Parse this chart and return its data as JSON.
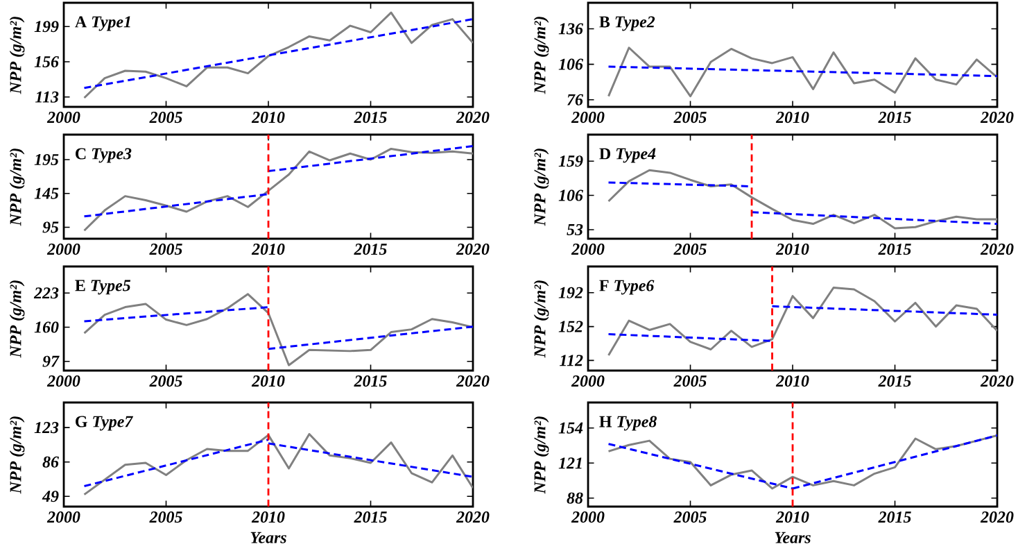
{
  "chart_data": [
    {
      "type": "line",
      "title": "A *Type1*",
      "ylabel": "NPP (g/m²)",
      "xlim": [
        2000,
        2020
      ],
      "xticks": [
        2000,
        2005,
        2010,
        2015,
        2020
      ],
      "ylim": [
        101,
        228
      ],
      "yticks": [
        113,
        156,
        199
      ],
      "x": [
        2001,
        2002,
        2003,
        2004,
        2005,
        2006,
        2007,
        2008,
        2009,
        2010,
        2011,
        2012,
        2013,
        2014,
        2015,
        2016,
        2017,
        2018,
        2019,
        2020
      ],
      "series": [
        {
          "color": "#808080",
          "values": [
            112,
            136,
            145,
            144,
            136,
            126,
            149,
            149,
            142,
            163,
            174,
            187,
            182,
            200,
            192,
            216,
            179,
            201,
            208,
            179
          ]
        },
        {
          "type": "line",
          "x": [
            2001,
            2020
          ],
          "values": [
            124,
            208
          ],
          "color": "#0000ff",
          "line_style": "dashed"
        }
      ]
    },
    {
      "type": "line",
      "title": "B *Type2*",
      "ylabel": "NPP (g/m²)",
      "xlim": [
        2000,
        2020
      ],
      "xticks": [
        2000,
        2005,
        2010,
        2015,
        2020
      ],
      "ylim": [
        70,
        158
      ],
      "yticks": [
        76,
        106,
        136
      ],
      "x": [
        2001,
        2002,
        2003,
        2004,
        2005,
        2006,
        2007,
        2008,
        2009,
        2010,
        2011,
        2012,
        2013,
        2014,
        2015,
        2016,
        2017,
        2018,
        2019,
        2020
      ],
      "series": [
        {
          "color": "#808080",
          "values": [
            79,
            120,
            104,
            104,
            79,
            108,
            119,
            111,
            107,
            112,
            85,
            116,
            90,
            93,
            82,
            111,
            93,
            89,
            110,
            95
          ]
        },
        {
          "type": "line",
          "x": [
            2001,
            2020
          ],
          "values": [
            104,
            96
          ],
          "color": "#0000ff",
          "line_style": "dashed"
        }
      ]
    },
    {
      "type": "line",
      "title": "C *Type3*",
      "ylabel": "NPP (g/m²)",
      "xlim": [
        2000,
        2020
      ],
      "xticks": [
        2000,
        2005,
        2010,
        2015,
        2020
      ],
      "ylim": [
        78,
        232
      ],
      "yticks": [
        95,
        145,
        195
      ],
      "x": [
        2001,
        2002,
        2003,
        2004,
        2005,
        2006,
        2007,
        2008,
        2009,
        2010,
        2011,
        2012,
        2013,
        2014,
        2015,
        2016,
        2017,
        2018,
        2019,
        2020
      ],
      "series": [
        {
          "color": "#808080",
          "values": [
            90,
            120,
            141,
            135,
            127,
            118,
            133,
            141,
            125,
            149,
            173,
            207,
            194,
            204,
            195,
            211,
            206,
            205,
            207,
            204
          ]
        },
        {
          "type": "line",
          "x": [
            2001,
            2010
          ],
          "values": [
            111,
            144
          ],
          "color": "#0000ff",
          "line_style": "dashed"
        },
        {
          "type": "line",
          "x": [
            2010,
            2020
          ],
          "values": [
            178,
            215
          ],
          "color": "#0000ff",
          "line_style": "dashed"
        }
      ],
      "ref_lines": [
        {
          "axis": "x",
          "value": 2010,
          "color": "#ff0000",
          "line_style": "dashed"
        }
      ]
    },
    {
      "type": "line",
      "title": "D *Type4*",
      "ylabel": "NPP (g/m²)",
      "xlim": [
        2000,
        2020
      ],
      "xticks": [
        2000,
        2005,
        2010,
        2015,
        2020
      ],
      "ylim": [
        39,
        200
      ],
      "yticks": [
        53,
        106,
        159
      ],
      "x": [
        2001,
        2002,
        2003,
        2004,
        2005,
        2006,
        2007,
        2008,
        2009,
        2010,
        2011,
        2012,
        2013,
        2014,
        2015,
        2016,
        2017,
        2018,
        2019,
        2020
      ],
      "series": [
        {
          "color": "#808080",
          "values": [
            97,
            128,
            145,
            141,
            130,
            120,
            123,
            103,
            85,
            68,
            62,
            76,
            63,
            76,
            55,
            57,
            66,
            73,
            69,
            69
          ]
        },
        {
          "type": "line",
          "x": [
            2001,
            2008
          ],
          "values": [
            126,
            120
          ],
          "color": "#0000ff",
          "line_style": "dashed"
        },
        {
          "type": "line",
          "x": [
            2008,
            2020
          ],
          "values": [
            80,
            62
          ],
          "color": "#0000ff",
          "line_style": "dashed"
        }
      ],
      "ref_lines": [
        {
          "axis": "x",
          "value": 2008,
          "color": "#ff0000",
          "line_style": "dashed"
        }
      ]
    },
    {
      "type": "line",
      "title": "E *Type5*",
      "ylabel": "NPP (g/m²)",
      "xlim": [
        2000,
        2020
      ],
      "xticks": [
        2000,
        2005,
        2010,
        2015,
        2020
      ],
      "ylim": [
        80,
        272
      ],
      "yticks": [
        97,
        160,
        223
      ],
      "x": [
        2001,
        2002,
        2003,
        2004,
        2005,
        2006,
        2007,
        2008,
        2009,
        2010,
        2011,
        2012,
        2013,
        2014,
        2015,
        2016,
        2017,
        2018,
        2019,
        2020
      ],
      "series": [
        {
          "color": "#808080",
          "values": [
            149,
            183,
            197,
            203,
            174,
            164,
            175,
            195,
            221,
            186,
            90,
            118,
            117,
            116,
            118,
            151,
            156,
            175,
            169,
            160
          ]
        },
        {
          "type": "line",
          "x": [
            2001,
            2010
          ],
          "values": [
            171,
            197
          ],
          "color": "#0000ff",
          "line_style": "dashed"
        },
        {
          "type": "line",
          "x": [
            2010,
            2020
          ],
          "values": [
            120,
            161
          ],
          "color": "#0000ff",
          "line_style": "dashed"
        }
      ],
      "ref_lines": [
        {
          "axis": "x",
          "value": 2010,
          "color": "#ff0000",
          "line_style": "dashed"
        }
      ]
    },
    {
      "type": "line",
      "title": "F *Type6*",
      "ylabel": "NPP (g/m²)",
      "xlim": [
        2000,
        2020
      ],
      "xticks": [
        2000,
        2005,
        2010,
        2015,
        2020
      ],
      "ylim": [
        100,
        223
      ],
      "yticks": [
        112,
        152,
        192
      ],
      "x": [
        2001,
        2002,
        2003,
        2004,
        2005,
        2006,
        2007,
        2008,
        2009,
        2010,
        2011,
        2012,
        2013,
        2014,
        2015,
        2016,
        2017,
        2018,
        2019,
        2020
      ],
      "series": [
        {
          "color": "#808080",
          "values": [
            118,
            159,
            148,
            155,
            134,
            125,
            147,
            128,
            137,
            188,
            162,
            198,
            196,
            182,
            158,
            180,
            152,
            177,
            173,
            147
          ]
        },
        {
          "type": "line",
          "x": [
            2001,
            2009
          ],
          "values": [
            143,
            135
          ],
          "color": "#0000ff",
          "line_style": "dashed"
        },
        {
          "type": "line",
          "x": [
            2009,
            2020
          ],
          "values": [
            176,
            166
          ],
          "color": "#0000ff",
          "line_style": "dashed"
        }
      ],
      "ref_lines": [
        {
          "axis": "x",
          "value": 2009,
          "color": "#ff0000",
          "line_style": "dashed"
        }
      ]
    },
    {
      "type": "line",
      "title": "G *Type7*",
      "xlabel": "Years",
      "ylabel": "NPP (g/m²)",
      "xlim": [
        2000,
        2020
      ],
      "xticks": [
        2000,
        2005,
        2010,
        2015,
        2020
      ],
      "ylim": [
        38,
        150
      ],
      "yticks": [
        49,
        86,
        123
      ],
      "x": [
        2001,
        2002,
        2003,
        2004,
        2005,
        2006,
        2007,
        2008,
        2009,
        2010,
        2011,
        2012,
        2013,
        2014,
        2015,
        2016,
        2017,
        2018,
        2019,
        2020
      ],
      "series": [
        {
          "color": "#808080",
          "values": [
            51,
            67,
            83,
            85,
            72,
            88,
            100,
            98,
            98,
            115,
            79,
            116,
            93,
            90,
            85,
            107,
            74,
            64,
            93,
            58
          ]
        },
        {
          "type": "line",
          "x": [
            2001,
            2010
          ],
          "values": [
            60,
            110
          ],
          "color": "#0000ff",
          "line_style": "dashed"
        },
        {
          "type": "line",
          "x": [
            2010,
            2020
          ],
          "values": [
            106,
            70
          ],
          "color": "#0000ff",
          "line_style": "dashed"
        }
      ],
      "ref_lines": [
        {
          "axis": "x",
          "value": 2010,
          "color": "#ff0000",
          "line_style": "dashed"
        }
      ]
    },
    {
      "type": "line",
      "title": "H *Type8*",
      "xlabel": "Years",
      "ylabel": "NPP (g/m²)",
      "xlim": [
        2000,
        2020
      ],
      "xticks": [
        2000,
        2005,
        2010,
        2015,
        2020
      ],
      "ylim": [
        80,
        178
      ],
      "yticks": [
        88,
        121,
        154
      ],
      "x": [
        2001,
        2002,
        2003,
        2004,
        2005,
        2006,
        2007,
        2008,
        2009,
        2010,
        2011,
        2012,
        2013,
        2014,
        2015,
        2016,
        2017,
        2018,
        2019,
        2020
      ],
      "series": [
        {
          "color": "#808080",
          "values": [
            132,
            138,
            142,
            125,
            122,
            100,
            110,
            114,
            97,
            108,
            100,
            104,
            100,
            111,
            117,
            144,
            134,
            137,
            142,
            147
          ]
        },
        {
          "type": "line",
          "x": [
            2001,
            2010
          ],
          "values": [
            139,
            97
          ],
          "color": "#0000ff",
          "line_style": "dashed"
        },
        {
          "type": "line",
          "x": [
            2010,
            2020
          ],
          "values": [
            97,
            147
          ],
          "color": "#0000ff",
          "line_style": "dashed"
        }
      ],
      "ref_lines": [
        {
          "axis": "x",
          "value": 2010,
          "color": "#ff0000",
          "line_style": "dashed"
        }
      ]
    }
  ]
}
